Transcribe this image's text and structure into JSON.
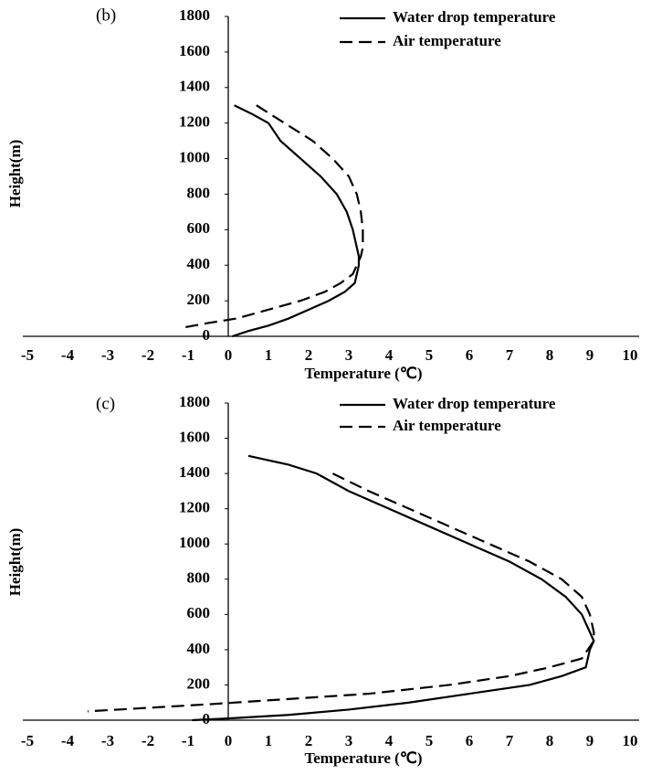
{
  "chart_data": [
    {
      "type": "line",
      "panel_label": "(b)",
      "x_label": "Temperature (℃)",
      "y_label": "Height(m)",
      "xlim": [
        -5,
        10
      ],
      "xticks": [
        -5,
        -4,
        -3,
        -2,
        -1,
        0,
        1,
        2,
        3,
        4,
        5,
        6,
        7,
        8,
        9,
        10
      ],
      "ylim": [
        0,
        1800
      ],
      "yticks": [
        0,
        200,
        400,
        600,
        800,
        1000,
        1200,
        1400,
        1600,
        1800
      ],
      "series": [
        {
          "name": "Water drop temperature",
          "color": "#000000",
          "dash": false,
          "x": [
            0.15,
            0.6,
            1.0,
            1.3,
            1.8,
            2.3,
            2.7,
            2.95,
            3.1,
            3.2,
            3.25,
            3.25,
            3.15,
            2.9,
            2.5,
            2.0,
            1.5,
            1.0,
            0.5,
            0.1
          ],
          "values": [
            1300,
            1250,
            1200,
            1100,
            1000,
            900,
            800,
            700,
            600,
            500,
            450,
            400,
            300,
            250,
            200,
            150,
            100,
            60,
            30,
            0
          ]
        },
        {
          "name": "Air temperature",
          "color": "#000000",
          "dash": true,
          "x": [
            0.7,
            1.4,
            2.1,
            2.6,
            3.0,
            3.2,
            3.3,
            3.35,
            3.35,
            3.3,
            3.1,
            2.8,
            2.4,
            1.8,
            1.0,
            0.2,
            -0.5,
            -1.1
          ],
          "values": [
            1300,
            1200,
            1100,
            1000,
            900,
            800,
            700,
            600,
            500,
            450,
            350,
            300,
            250,
            200,
            150,
            100,
            75,
            50
          ]
        }
      ]
    },
    {
      "type": "line",
      "panel_label": "(c)",
      "x_label": "Temperature (℃)",
      "y_label": "Height(m)",
      "xlim": [
        -5,
        10
      ],
      "xticks": [
        -5,
        -4,
        -3,
        -2,
        -1,
        0,
        1,
        2,
        3,
        4,
        5,
        6,
        7,
        8,
        9,
        10
      ],
      "ylim": [
        0,
        1800
      ],
      "yticks": [
        0,
        200,
        400,
        600,
        800,
        1000,
        1200,
        1400,
        1600,
        1800
      ],
      "series": [
        {
          "name": "Water drop temperature",
          "color": "#000000",
          "dash": false,
          "x": [
            0.5,
            1.5,
            2.2,
            2.6,
            3.0,
            4.0,
            5.0,
            6.0,
            7.0,
            7.8,
            8.4,
            8.8,
            9.0,
            9.1,
            9.0,
            8.9,
            8.3,
            7.5,
            6.0,
            4.5,
            3.0,
            1.5,
            0.0,
            -0.9
          ],
          "values": [
            1500,
            1450,
            1400,
            1350,
            1300,
            1200,
            1100,
            1000,
            900,
            800,
            700,
            600,
            500,
            450,
            400,
            300,
            250,
            200,
            150,
            100,
            60,
            30,
            10,
            0
          ]
        },
        {
          "name": "Air temperature",
          "color": "#000000",
          "dash": true,
          "x": [
            2.6,
            3.5,
            4.5,
            5.5,
            6.5,
            7.5,
            8.3,
            8.8,
            9.0,
            9.1,
            9.1,
            8.8,
            8.0,
            7.0,
            5.5,
            3.5,
            1.5,
            -0.5,
            -2.0,
            -3.5
          ],
          "values": [
            1400,
            1300,
            1200,
            1100,
            1000,
            900,
            800,
            700,
            600,
            500,
            450,
            350,
            300,
            250,
            200,
            150,
            120,
            90,
            70,
            50
          ]
        }
      ]
    }
  ]
}
